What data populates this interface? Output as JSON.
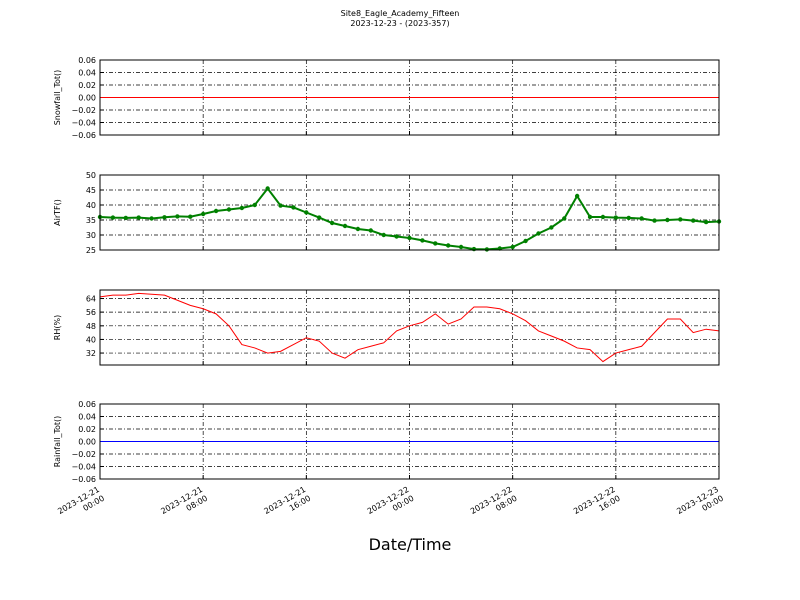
{
  "chart_data": [
    {
      "type": "line",
      "title": "Site8_Eagle_Academy_Fifteen",
      "subtitle": "2023-12-23 - (2023-357)",
      "ylabel": "Snowfall_Tot()",
      "color": "#ff0000",
      "grid": true,
      "xlim": [
        "2023-12-21 00:00",
        "2023-12-23 00:00"
      ],
      "xticks": [
        "2023-12-21 00:00",
        "2023-12-21 08:00",
        "2023-12-21 16:00",
        "2023-12-22 00:00",
        "2023-12-22 08:00",
        "2023-12-22 16:00",
        "2023-12-23 00:00"
      ],
      "ylim": [
        -0.06,
        0.06
      ],
      "yticks": [
        {
          "value": -0.06,
          "label": "−0.06"
        },
        {
          "value": -0.04,
          "label": "−0.04"
        },
        {
          "value": -0.02,
          "label": "−0.02"
        },
        {
          "value": 0,
          "label": "0.00"
        },
        0.02,
        0.04,
        0.06
      ],
      "x": [
        "2023-12-21 00:00",
        "2023-12-23 00:00"
      ],
      "values": [
        0,
        0
      ]
    },
    {
      "type": "line",
      "ylabel": "AirTF()",
      "color": "#008000",
      "markers": true,
      "grid": true,
      "xlim": [
        "2023-12-21 00:00",
        "2023-12-23 00:00"
      ],
      "xticks": [
        "2023-12-21 00:00",
        "2023-12-21 08:00",
        "2023-12-21 16:00",
        "2023-12-22 00:00",
        "2023-12-22 08:00",
        "2023-12-22 16:00",
        "2023-12-23 00:00"
      ],
      "ylim": [
        25,
        50
      ],
      "yticks": [
        25,
        30,
        35,
        40,
        45,
        50
      ],
      "x": [
        "2023-12-21 00:00",
        "2023-12-21 01:00",
        "2023-12-21 02:00",
        "2023-12-21 03:00",
        "2023-12-21 04:00",
        "2023-12-21 05:00",
        "2023-12-21 06:00",
        "2023-12-21 07:00",
        "2023-12-21 08:00",
        "2023-12-21 09:00",
        "2023-12-21 10:00",
        "2023-12-21 11:00",
        "2023-12-21 12:00",
        "2023-12-21 13:00",
        "2023-12-21 14:00",
        "2023-12-21 15:00",
        "2023-12-21 16:00",
        "2023-12-21 17:00",
        "2023-12-21 18:00",
        "2023-12-21 19:00",
        "2023-12-21 20:00",
        "2023-12-21 21:00",
        "2023-12-21 22:00",
        "2023-12-21 23:00",
        "2023-12-22 00:00",
        "2023-12-22 01:00",
        "2023-12-22 02:00",
        "2023-12-22 03:00",
        "2023-12-22 04:00",
        "2023-12-22 05:00",
        "2023-12-22 06:00",
        "2023-12-22 07:00",
        "2023-12-22 08:00",
        "2023-12-22 09:00",
        "2023-12-22 10:00",
        "2023-12-22 11:00",
        "2023-12-22 12:00",
        "2023-12-22 13:00",
        "2023-12-22 14:00",
        "2023-12-22 15:00",
        "2023-12-22 16:00",
        "2023-12-22 17:00",
        "2023-12-22 18:00",
        "2023-12-22 19:00",
        "2023-12-22 20:00",
        "2023-12-22 21:00",
        "2023-12-22 22:00",
        "2023-12-22 23:00",
        "2023-12-23 00:00"
      ],
      "values": [
        36,
        35.8,
        35.7,
        35.8,
        35.5,
        35.9,
        36.2,
        36.1,
        37,
        38,
        38.5,
        39,
        40,
        45.5,
        39.8,
        39.2,
        37.5,
        35.8,
        34,
        33,
        32,
        31.5,
        30,
        29.5,
        29,
        28.2,
        27.2,
        26.5,
        26,
        25.3,
        25.2,
        25.5,
        26,
        28,
        30.5,
        32.5,
        35.5,
        43,
        36,
        36,
        35.8,
        35.7,
        35.5,
        34.8,
        35,
        35.2,
        34.8,
        34.3,
        34.5
      ]
    },
    {
      "type": "line",
      "ylabel": "RH(%)",
      "color": "#ff0000",
      "grid": true,
      "xlim": [
        "2023-12-21 00:00",
        "2023-12-23 00:00"
      ],
      "xticks": [
        "2023-12-21 00:00",
        "2023-12-21 08:00",
        "2023-12-21 16:00",
        "2023-12-22 00:00",
        "2023-12-22 08:00",
        "2023-12-22 16:00",
        "2023-12-23 00:00"
      ],
      "ylim": [
        25,
        69
      ],
      "yticks": [
        32,
        40,
        48,
        56,
        64
      ],
      "x": [
        "2023-12-21 00:00",
        "2023-12-21 01:00",
        "2023-12-21 02:00",
        "2023-12-21 03:00",
        "2023-12-21 04:00",
        "2023-12-21 05:00",
        "2023-12-21 06:00",
        "2023-12-21 07:00",
        "2023-12-21 08:00",
        "2023-12-21 09:00",
        "2023-12-21 10:00",
        "2023-12-21 11:00",
        "2023-12-21 12:00",
        "2023-12-21 13:00",
        "2023-12-21 14:00",
        "2023-12-21 15:00",
        "2023-12-21 16:00",
        "2023-12-21 17:00",
        "2023-12-21 18:00",
        "2023-12-21 19:00",
        "2023-12-21 20:00",
        "2023-12-21 21:00",
        "2023-12-21 22:00",
        "2023-12-21 23:00",
        "2023-12-22 00:00",
        "2023-12-22 01:00",
        "2023-12-22 02:00",
        "2023-12-22 03:00",
        "2023-12-22 04:00",
        "2023-12-22 05:00",
        "2023-12-22 06:00",
        "2023-12-22 07:00",
        "2023-12-22 08:00",
        "2023-12-22 09:00",
        "2023-12-22 10:00",
        "2023-12-22 11:00",
        "2023-12-22 12:00",
        "2023-12-22 13:00",
        "2023-12-22 14:00",
        "2023-12-22 15:00",
        "2023-12-22 16:00",
        "2023-12-22 17:00",
        "2023-12-22 18:00",
        "2023-12-22 19:00",
        "2023-12-22 20:00",
        "2023-12-22 21:00",
        "2023-12-22 22:00",
        "2023-12-22 23:00",
        "2023-12-23 00:00"
      ],
      "values": [
        65,
        66,
        66,
        67,
        66.5,
        66,
        63,
        60,
        58,
        55,
        48,
        37,
        35,
        32,
        33,
        37,
        41,
        39,
        32,
        29,
        34,
        36,
        38,
        45,
        48,
        50,
        55,
        49,
        52,
        59,
        59,
        58,
        55,
        51,
        45,
        42,
        39,
        35,
        34,
        27,
        32,
        34,
        36,
        44,
        52,
        52,
        44,
        46,
        45
      ]
    },
    {
      "type": "line",
      "ylabel": "Rainfall_Tot()",
      "xlabel": "Date/Time",
      "color": "#0000ff",
      "grid": true,
      "xlim": [
        "2023-12-21 00:00",
        "2023-12-23 00:00"
      ],
      "xticks": [
        "2023-12-21 00:00",
        "2023-12-21 08:00",
        "2023-12-21 16:00",
        "2023-12-22 00:00",
        "2023-12-22 08:00",
        "2023-12-22 16:00",
        "2023-12-23 00:00"
      ],
      "ylim": [
        -0.06,
        0.06
      ],
      "yticks": [
        {
          "value": -0.06,
          "label": "−0.06"
        },
        {
          "value": -0.04,
          "label": "−0.04"
        },
        {
          "value": -0.02,
          "label": "−0.02"
        },
        {
          "value": 0,
          "label": "0.00"
        },
        0.02,
        0.04,
        0.06
      ],
      "x": [
        "2023-12-21 00:00",
        "2023-12-23 00:00"
      ],
      "values": [
        0,
        0
      ]
    }
  ]
}
